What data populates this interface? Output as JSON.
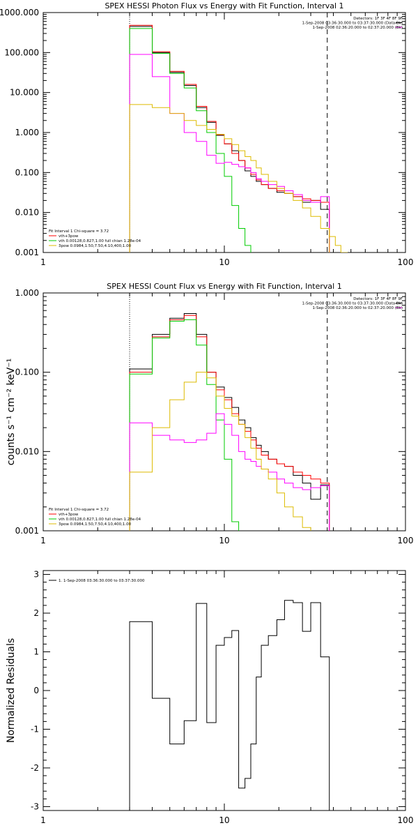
{
  "chart_data": [
    {
      "type": "line",
      "title": "SPEX HESSI Photon Flux vs Energy with Fit Function, Interval 1",
      "ylabel": "",
      "xlabel": "",
      "x_scale": "log",
      "y_scale": "log",
      "xlim": [
        1,
        100
      ],
      "ylim": [
        0.001,
        1000
      ],
      "x_ticks": [
        "1",
        "10",
        "100"
      ],
      "y_ticks": [
        "1000.000",
        "100.000",
        "10.000",
        "1.000",
        "0.100",
        "0.010",
        "0.001"
      ],
      "info_lines": [
        "Detectors: 1F 3F 4F 8F 9F",
        "1-Sep-2008 03:36:30.000 to 03:37:30.000 (Data-Bk)",
        "1-Sep-2008 02:36:20.000 to 02:37:20.000 (Bk)"
      ],
      "legend": [
        "Fit Interval 1   Chi-square = 3.72",
        "vth+3pow",
        "vth 0.00128,0.827,1.00   full chian 1.28e-04",
        "3pow 0.0984,1.50,7.50,4.10,400,1.00"
      ],
      "vlines": [
        {
          "x": 3.0,
          "style": "dotted"
        },
        {
          "x": 37.0,
          "style": "dashed"
        }
      ],
      "edges": [
        3,
        4,
        5,
        6,
        7,
        8,
        9,
        10,
        11,
        12,
        13,
        14,
        15,
        16,
        17.5,
        19.5,
        21.5,
        24,
        27,
        30,
        34,
        38
      ],
      "series": [
        {
          "color": "#000000",
          "values": [
            450,
            100,
            32,
            15,
            4.2,
            1.8,
            0.85,
            0.52,
            0.35,
            0.2,
            0.11,
            0.08,
            0.06,
            0.05,
            0.04,
            0.032,
            0.03,
            0.025,
            0.018,
            0.02,
            0.012
          ]
        },
        {
          "color": "#ff0000",
          "values": [
            480,
            105,
            34,
            16,
            4.5,
            1.9,
            0.88,
            0.52,
            0.3,
            0.2,
            0.13,
            0.09,
            0.065,
            0.05,
            0.04,
            0.035,
            0.03,
            0.025,
            0.022,
            0.02,
            0.018
          ]
        },
        {
          "color": "#00cc00",
          "values": [
            400,
            95,
            30,
            13,
            3.5,
            1.0,
            0.3,
            0.08,
            0.015,
            0.004,
            0.0015,
            0.0009
          ]
        },
        {
          "color": "#ff00ff",
          "values": [
            90,
            25,
            3.0,
            1.0,
            0.6,
            0.27,
            0.17,
            0.18,
            0.16,
            0.14,
            0.13,
            0.1,
            0.07,
            0.06,
            0.05,
            0.045,
            0.035,
            0.028,
            0.02,
            0.018,
            0.025
          ]
        },
        {
          "color": "#ddbb00",
          "values": [
            5.0,
            4.2,
            3.0,
            2.0,
            1.5,
            1.2,
            0.9,
            0.7,
            0.5,
            0.35,
            0.25,
            0.2,
            0.13,
            0.09,
            0.06,
            0.04,
            0.03,
            0.02,
            0.013,
            0.008,
            0.004
          ]
        }
      ],
      "extra_step_segments": [
        {
          "color": "#00cc00",
          "x": [
            15,
            16,
            16,
            17.5,
            17.5
          ],
          "y": [
            0.0009,
            0.0009,
            0.0005,
            0.0005,
            0.0003
          ]
        },
        {
          "color": "#ddbb00",
          "x": [
            38,
            38,
            41,
            41,
            44,
            44,
            48
          ],
          "y": [
            0.004,
            0.0025,
            0.0025,
            0.0015,
            0.0015,
            0.001,
            0.001
          ]
        }
      ]
    },
    {
      "type": "line",
      "title": "SPEX HESSI Count Flux vs Energy with Fit Function, Interval 1",
      "ylabel": "counts s⁻¹ cm⁻² keV⁻¹",
      "xlabel": "",
      "x_scale": "log",
      "y_scale": "log",
      "xlim": [
        1,
        100
      ],
      "ylim": [
        0.001,
        1
      ],
      "x_ticks": [
        "1",
        "10",
        "100"
      ],
      "y_ticks": [
        "1.000",
        "0.100",
        "0.010",
        "0.001"
      ],
      "info_lines": [
        "Detectors: 1F 3F 4F 8F 9F",
        "1-Sep-2008 03:36:30.000 to 03:37:30.000 (Data-Bk)",
        "1-Sep-2008 02:36:20.000 to 02:37:20.000 (Bk)"
      ],
      "legend": [
        "Fit Interval 1   Chi-square = 3.72",
        "vth+3pow",
        "vth 0.00128,0.827,1.00   full chian 1.28e-04",
        "3pow 0.0984,1.50,7.50,4.10,400,1.00"
      ],
      "vlines": [
        {
          "x": 3.0,
          "style": "dotted"
        },
        {
          "x": 37.0,
          "style": "dashed"
        }
      ],
      "edges": [
        3,
        4,
        5,
        6,
        7,
        8,
        9,
        10,
        11,
        12,
        13,
        14,
        15,
        16,
        17.5,
        19.5,
        21.5,
        24,
        27,
        30,
        34,
        38
      ],
      "series": [
        {
          "color": "#000000",
          "values": [
            0.11,
            0.3,
            0.48,
            0.55,
            0.3,
            0.1,
            0.065,
            0.048,
            0.036,
            0.025,
            0.02,
            0.015,
            0.012,
            0.01,
            0.008,
            0.007,
            0.0065,
            0.005,
            0.004,
            0.0025,
            0.0038
          ]
        },
        {
          "color": "#ff0000",
          "values": [
            0.1,
            0.28,
            0.46,
            0.52,
            0.28,
            0.1,
            0.06,
            0.045,
            0.03,
            0.022,
            0.018,
            0.014,
            0.011,
            0.009,
            0.008,
            0.007,
            0.0065,
            0.0055,
            0.005,
            0.0045,
            0.004
          ]
        },
        {
          "color": "#00cc00",
          "values": [
            0.095,
            0.27,
            0.44,
            0.46,
            0.22,
            0.07,
            0.025,
            0.008,
            0.0013,
            0.0009
          ]
        },
        {
          "color": "#ff00ff",
          "values": [
            0.023,
            0.016,
            0.014,
            0.013,
            0.014,
            0.017,
            0.03,
            0.022,
            0.016,
            0.01,
            0.008,
            0.0075,
            0.0065,
            0.006,
            0.0055,
            0.0045,
            0.004,
            0.0035,
            0.0033,
            0.0035,
            0.0037
          ]
        },
        {
          "color": "#ddbb00",
          "values": [
            0.0055,
            0.02,
            0.045,
            0.075,
            0.1,
            0.085,
            0.05,
            0.035,
            0.028,
            0.022,
            0.015,
            0.011,
            0.008,
            0.006,
            0.0045,
            0.003,
            0.002,
            0.0015,
            0.0011,
            0.0009
          ]
        }
      ],
      "extra_step_segments": []
    },
    {
      "type": "line",
      "title": "",
      "ylabel": "Normalized Residuals",
      "xlabel": "",
      "x_scale": "log",
      "y_scale": "linear",
      "xlim": [
        1,
        100
      ],
      "ylim": [
        -3.1,
        3.1
      ],
      "x_ticks": [
        "1",
        "10",
        "100"
      ],
      "y_ticks": [
        "3",
        "2",
        "1",
        "0",
        "-1",
        "-2",
        "-3"
      ],
      "info_lines": [],
      "legend": [
        "1. 1-Sep-2008 03:36:30.000 to 03:37:30.000"
      ],
      "vlines": [],
      "edges": [
        3,
        4,
        5,
        6,
        7,
        8,
        9,
        10,
        11,
        12,
        13,
        14,
        15,
        16,
        17.5,
        19.5,
        21.5,
        24,
        27,
        30,
        34,
        38
      ],
      "series": [
        {
          "color": "#000000",
          "values": [
            1.78,
            -0.2,
            -1.38,
            -0.78,
            2.25,
            -0.83,
            1.17,
            1.37,
            1.55,
            -2.52,
            -2.27,
            -1.38,
            0.35,
            1.17,
            1.42,
            1.83,
            2.33,
            2.27,
            1.53,
            2.27,
            0.87
          ]
        }
      ],
      "extra_step_segments": []
    }
  ]
}
